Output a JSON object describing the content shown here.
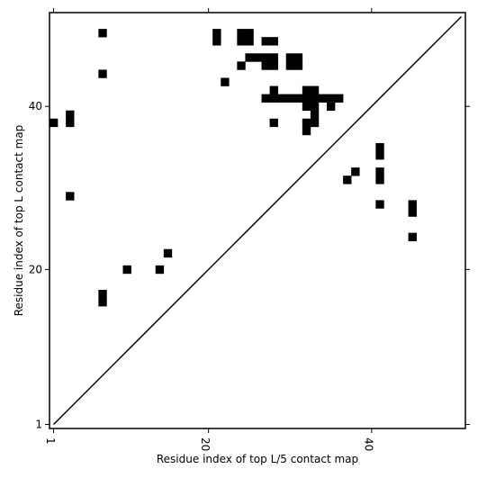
{
  "chart_data": {
    "type": "heatmap",
    "xlabel": "Residue index of top L/5 contact map",
    "ylabel": "Residue index of top L contact map",
    "xlim": [
      0.5,
      51.5
    ],
    "ylim": [
      0.5,
      51.5
    ],
    "x_ticks": [
      {
        "value": 1,
        "label": "1"
      },
      {
        "value": 20,
        "label": "20"
      },
      {
        "value": 40,
        "label": "40"
      }
    ],
    "y_ticks": [
      {
        "value": 1,
        "label": "1"
      },
      {
        "value": 20,
        "label": "20"
      },
      {
        "value": 40,
        "label": "40"
      }
    ],
    "diagonal_line": [
      [
        1,
        1
      ],
      [
        51,
        51
      ]
    ],
    "grid": false,
    "cells": [
      [
        1,
        38
      ],
      [
        3,
        38
      ],
      [
        3,
        39
      ],
      [
        3,
        29
      ],
      [
        7,
        49
      ],
      [
        7,
        44
      ],
      [
        7,
        16
      ],
      [
        7,
        17
      ],
      [
        10,
        20
      ],
      [
        14,
        20
      ],
      [
        15,
        22
      ],
      [
        21,
        48
      ],
      [
        21,
        49
      ],
      [
        22,
        43
      ],
      [
        24,
        45
      ],
      [
        24,
        48
      ],
      [
        24,
        49
      ],
      [
        25,
        46
      ],
      [
        25,
        48
      ],
      [
        25,
        49
      ],
      [
        26,
        46
      ],
      [
        27,
        48
      ],
      [
        28,
        48
      ],
      [
        27,
        45
      ],
      [
        27,
        46
      ],
      [
        28,
        45
      ],
      [
        28,
        46
      ],
      [
        27,
        41
      ],
      [
        28,
        41
      ],
      [
        28,
        42
      ],
      [
        29,
        41
      ],
      [
        30,
        41
      ],
      [
        31,
        41
      ],
      [
        30,
        45
      ],
      [
        30,
        46
      ],
      [
        31,
        45
      ],
      [
        31,
        46
      ],
      [
        32,
        40
      ],
      [
        32,
        41
      ],
      [
        32,
        42
      ],
      [
        33,
        39
      ],
      [
        33,
        40
      ],
      [
        33,
        41
      ],
      [
        33,
        42
      ],
      [
        34,
        41
      ],
      [
        35,
        41
      ],
      [
        36,
        41
      ],
      [
        35,
        40
      ],
      [
        28,
        38
      ],
      [
        32,
        37
      ],
      [
        32,
        38
      ],
      [
        33,
        38
      ],
      [
        37,
        31
      ],
      [
        38,
        32
      ],
      [
        41,
        31
      ],
      [
        41,
        32
      ],
      [
        41,
        34
      ],
      [
        41,
        35
      ],
      [
        41,
        28
      ],
      [
        45,
        24
      ],
      [
        45,
        27
      ],
      [
        45,
        28
      ]
    ]
  }
}
